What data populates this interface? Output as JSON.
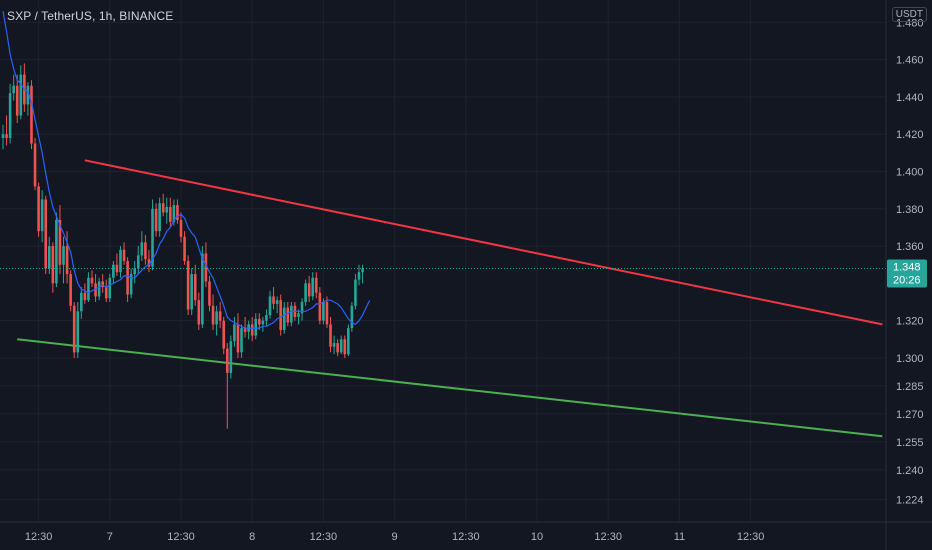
{
  "header": {
    "symbol_title": "SXP / TetherUS, 1h, BINANCE",
    "currency": "USDT"
  },
  "colors": {
    "background": "#131722",
    "up": "#26a69a",
    "down": "#ef5350",
    "ma": "#2962ff",
    "resistance_line": "#f23645",
    "support_line": "#4caf50",
    "grid": "#1e222d"
  },
  "last_price": {
    "value": "1.348",
    "countdown": "20:26"
  },
  "chart_data": {
    "type": "candlestick",
    "title": "SXP / TetherUS, 1h, BINANCE",
    "ylim": [
      1.212,
      1.492
    ],
    "y_ticks": [
      1.48,
      1.46,
      1.44,
      1.42,
      1.4,
      1.38,
      1.36,
      1.32,
      1.3,
      1.285,
      1.27,
      1.255,
      1.24,
      1.224
    ],
    "y_tick_labels": [
      "1.480",
      "1.460",
      "1.440",
      "1.420",
      "1.400",
      "1.380",
      "1.360",
      "1.320",
      "1.300",
      "1.285",
      "1.270",
      "1.255",
      "1.240",
      "1.224"
    ],
    "x_tick_labels": [
      "12:30",
      "7",
      "12:30",
      "8",
      "12:30",
      "9",
      "12:30",
      "10",
      "12:30",
      "11",
      "12:30"
    ],
    "x_tick_bar_index": [
      10,
      30,
      50,
      70,
      90,
      110,
      130,
      150,
      170,
      190,
      210
    ],
    "bars": [
      [
        1.418,
        1.425,
        1.412,
        1.42
      ],
      [
        1.42,
        1.43,
        1.414,
        1.418
      ],
      [
        1.418,
        1.447,
        1.415,
        1.442
      ],
      [
        1.442,
        1.452,
        1.438,
        1.446
      ],
      [
        1.446,
        1.452,
        1.426,
        1.43
      ],
      [
        1.43,
        1.457,
        1.428,
        1.452
      ],
      [
        1.452,
        1.458,
        1.432,
        1.436
      ],
      [
        1.436,
        1.448,
        1.43,
        1.446
      ],
      [
        1.446,
        1.449,
        1.412,
        1.415
      ],
      [
        1.415,
        1.418,
        1.39,
        1.392
      ],
      [
        1.392,
        1.394,
        1.365,
        1.368
      ],
      [
        1.368,
        1.39,
        1.362,
        1.385
      ],
      [
        1.385,
        1.387,
        1.345,
        1.348
      ],
      [
        1.348,
        1.365,
        1.345,
        1.36
      ],
      [
        1.36,
        1.362,
        1.335,
        1.34
      ],
      [
        1.34,
        1.378,
        1.338,
        1.374
      ],
      [
        1.374,
        1.382,
        1.345,
        1.35
      ],
      [
        1.35,
        1.365,
        1.34,
        1.36
      ],
      [
        1.36,
        1.368,
        1.34,
        1.345
      ],
      [
        1.345,
        1.347,
        1.325,
        1.328
      ],
      [
        1.328,
        1.33,
        1.3,
        1.303
      ],
      [
        1.303,
        1.33,
        1.3,
        1.325
      ],
      [
        1.325,
        1.338,
        1.321,
        1.335
      ],
      [
        1.335,
        1.34,
        1.329,
        1.331
      ],
      [
        1.331,
        1.346,
        1.33,
        1.343
      ],
      [
        1.343,
        1.347,
        1.338,
        1.34
      ],
      [
        1.34,
        1.345,
        1.33,
        1.333
      ],
      [
        1.333,
        1.343,
        1.331,
        1.341
      ],
      [
        1.341,
        1.345,
        1.335,
        1.338
      ],
      [
        1.338,
        1.342,
        1.33,
        1.332
      ],
      [
        1.332,
        1.345,
        1.33,
        1.343
      ],
      [
        1.343,
        1.352,
        1.34,
        1.35
      ],
      [
        1.35,
        1.356,
        1.344,
        1.346
      ],
      [
        1.346,
        1.36,
        1.343,
        1.358
      ],
      [
        1.358,
        1.362,
        1.35,
        1.352
      ],
      [
        1.352,
        1.354,
        1.33,
        1.334
      ],
      [
        1.334,
        1.348,
        1.332,
        1.345
      ],
      [
        1.345,
        1.352,
        1.34,
        1.348
      ],
      [
        1.348,
        1.36,
        1.345,
        1.355
      ],
      [
        1.355,
        1.368,
        1.352,
        1.362
      ],
      [
        1.362,
        1.366,
        1.35,
        1.353
      ],
      [
        1.353,
        1.358,
        1.346,
        1.349
      ],
      [
        1.349,
        1.385,
        1.347,
        1.38
      ],
      [
        1.38,
        1.383,
        1.365,
        1.368
      ],
      [
        1.368,
        1.386,
        1.365,
        1.383
      ],
      [
        1.383,
        1.388,
        1.376,
        1.378
      ],
      [
        1.378,
        1.386,
        1.372,
        1.381
      ],
      [
        1.381,
        1.386,
        1.37,
        1.373
      ],
      [
        1.373,
        1.385,
        1.371,
        1.382
      ],
      [
        1.382,
        1.385,
        1.372,
        1.374
      ],
      [
        1.374,
        1.378,
        1.362,
        1.365
      ],
      [
        1.365,
        1.368,
        1.35,
        1.352
      ],
      [
        1.352,
        1.355,
        1.323,
        1.326
      ],
      [
        1.326,
        1.348,
        1.323,
        1.345
      ],
      [
        1.345,
        1.35,
        1.328,
        1.331
      ],
      [
        1.331,
        1.335,
        1.315,
        1.318
      ],
      [
        1.318,
        1.36,
        1.316,
        1.356
      ],
      [
        1.356,
        1.362,
        1.338,
        1.341
      ],
      [
        1.341,
        1.344,
        1.325,
        1.328
      ],
      [
        1.328,
        1.334,
        1.315,
        1.318
      ],
      [
        1.318,
        1.328,
        1.312,
        1.325
      ],
      [
        1.325,
        1.33,
        1.316,
        1.32
      ],
      [
        1.32,
        1.322,
        1.302,
        1.305
      ],
      [
        1.305,
        1.308,
        1.262,
        1.292
      ],
      [
        1.292,
        1.312,
        1.289,
        1.309
      ],
      [
        1.309,
        1.322,
        1.306,
        1.318
      ],
      [
        1.318,
        1.324,
        1.3,
        1.303
      ],
      [
        1.303,
        1.318,
        1.3,
        1.316
      ],
      [
        1.316,
        1.322,
        1.311,
        1.314
      ],
      [
        1.314,
        1.32,
        1.31,
        1.318
      ],
      [
        1.318,
        1.322,
        1.309,
        1.312
      ],
      [
        1.312,
        1.324,
        1.31,
        1.321
      ],
      [
        1.321,
        1.324,
        1.315,
        1.318
      ],
      [
        1.318,
        1.322,
        1.314,
        1.32
      ],
      [
        1.32,
        1.326,
        1.317,
        1.323
      ],
      [
        1.323,
        1.336,
        1.321,
        1.333
      ],
      [
        1.333,
        1.338,
        1.326,
        1.329
      ],
      [
        1.329,
        1.333,
        1.324,
        1.331
      ],
      [
        1.331,
        1.334,
        1.312,
        1.315
      ],
      [
        1.315,
        1.33,
        1.313,
        1.327
      ],
      [
        1.327,
        1.33,
        1.317,
        1.319
      ],
      [
        1.319,
        1.33,
        1.317,
        1.328
      ],
      [
        1.328,
        1.33,
        1.32,
        1.322
      ],
      [
        1.322,
        1.326,
        1.318,
        1.324
      ],
      [
        1.324,
        1.332,
        1.32,
        1.33
      ],
      [
        1.33,
        1.342,
        1.328,
        1.34
      ],
      [
        1.34,
        1.344,
        1.33,
        1.333
      ],
      [
        1.333,
        1.346,
        1.331,
        1.343
      ],
      [
        1.343,
        1.346,
        1.332,
        1.335
      ],
      [
        1.335,
        1.338,
        1.318,
        1.32
      ],
      [
        1.32,
        1.332,
        1.318,
        1.33
      ],
      [
        1.33,
        1.333,
        1.316,
        1.318
      ],
      [
        1.318,
        1.322,
        1.303,
        1.306
      ],
      [
        1.306,
        1.312,
        1.302,
        1.308
      ],
      [
        1.308,
        1.31,
        1.301,
        1.303
      ],
      [
        1.303,
        1.312,
        1.302,
        1.31
      ],
      [
        1.31,
        1.312,
        1.3,
        1.302
      ],
      [
        1.302,
        1.318,
        1.301,
        1.316
      ],
      [
        1.316,
        1.33,
        1.314,
        1.328
      ],
      [
        1.328,
        1.345,
        1.326,
        1.342
      ],
      [
        1.342,
        1.35,
        1.339,
        1.346
      ],
      [
        1.346,
        1.35,
        1.34,
        1.348
      ]
    ],
    "ma_series": [
      1.486,
      1.475,
      1.463,
      1.455,
      1.449,
      1.447,
      1.444,
      1.443,
      1.437,
      1.428,
      1.419,
      1.41,
      1.399,
      1.389,
      1.381,
      1.376,
      1.371,
      1.367,
      1.362,
      1.357,
      1.347,
      1.34,
      1.337,
      1.336,
      1.335,
      1.336,
      1.337,
      1.338,
      1.339,
      1.338,
      1.339,
      1.34,
      1.341,
      1.342,
      1.344,
      1.344,
      1.343,
      1.343,
      1.345,
      1.347,
      1.349,
      1.35,
      1.353,
      1.356,
      1.361,
      1.364,
      1.368,
      1.37,
      1.374,
      1.376,
      1.377,
      1.375,
      1.37,
      1.367,
      1.365,
      1.359,
      1.353,
      1.35,
      1.346,
      1.343,
      1.338,
      1.333,
      1.328,
      1.322,
      1.32,
      1.319,
      1.318,
      1.317,
      1.316,
      1.316,
      1.316,
      1.316,
      1.316,
      1.317,
      1.317,
      1.318,
      1.319,
      1.321,
      1.322,
      1.323,
      1.324,
      1.325,
      1.325,
      1.325,
      1.325,
      1.325,
      1.326,
      1.327,
      1.329,
      1.329,
      1.33,
      1.331,
      1.331,
      1.33,
      1.329,
      1.327,
      1.324,
      1.321,
      1.319,
      1.318,
      1.32,
      1.323,
      1.327,
      1.331
    ],
    "trendlines": [
      {
        "name": "resistance",
        "from": [
          23,
          1.406
        ],
        "to": [
          247,
          1.318
        ]
      },
      {
        "name": "support",
        "from": [
          4,
          1.31
        ],
        "to": [
          247,
          1.258
        ]
      }
    ]
  }
}
